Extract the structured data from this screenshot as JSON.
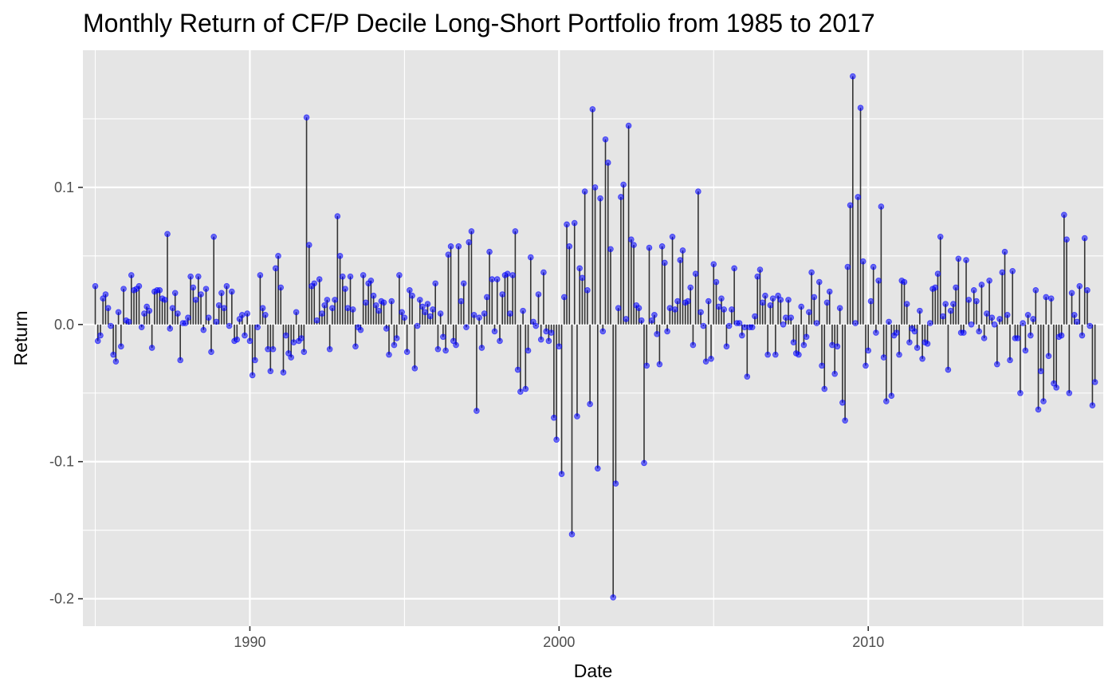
{
  "chart_data": {
    "type": "scatter",
    "subtype": "lollipop",
    "title": "Monthly Return of CF/P Decile Long-Short Portfolio from 1985 to 2017",
    "xlabel": "Date",
    "ylabel": "Return",
    "xlim": [
      1984.6,
      2017.6
    ],
    "ylim": [
      -0.22,
      0.2
    ],
    "x_ticks": [
      1990,
      2000,
      2010
    ],
    "x_tick_labels": [
      "1990",
      "2000",
      "2010"
    ],
    "y_ticks": [
      -0.2,
      -0.1,
      0.0,
      0.1
    ],
    "y_tick_labels": [
      "-0.2",
      "-0.1",
      "0.0",
      "0.1"
    ],
    "grid": true,
    "legend": "none",
    "colors": {
      "panel": "#e5e5e5",
      "grid": "#ffffff",
      "stem": "#333333",
      "point": "#0000ff"
    },
    "start": "1985-01",
    "frequency": "monthly",
    "values": [
      0.028,
      -0.012,
      -0.008,
      0.019,
      0.022,
      0.012,
      -0.001,
      -0.022,
      -0.027,
      0.009,
      -0.016,
      0.026,
      0.003,
      0.002,
      0.036,
      0.025,
      0.026,
      0.028,
      -0.002,
      0.008,
      0.013,
      0.01,
      -0.017,
      0.024,
      0.025,
      0.025,
      0.019,
      0.018,
      0.066,
      -0.003,
      0.012,
      0.023,
      0.008,
      -0.026,
      0.001,
      0.001,
      0.005,
      0.035,
      0.027,
      0.018,
      0.035,
      0.022,
      -0.004,
      0.026,
      0.005,
      -0.02,
      0.064,
      0.002,
      0.014,
      0.023,
      0.012,
      0.028,
      -0.001,
      0.024,
      -0.012,
      -0.011,
      0.004,
      0.007,
      -0.008,
      0.008,
      -0.012,
      -0.037,
      -0.026,
      -0.002,
      0.036,
      0.012,
      0.007,
      -0.018,
      -0.034,
      -0.018,
      0.041,
      0.05,
      0.027,
      -0.035,
      -0.008,
      -0.021,
      -0.024,
      -0.013,
      0.009,
      -0.012,
      -0.01,
      -0.02,
      0.151,
      0.058,
      0.028,
      0.03,
      0.003,
      0.033,
      0.008,
      0.014,
      0.018,
      -0.018,
      0.012,
      0.018,
      0.079,
      0.05,
      0.035,
      0.026,
      0.012,
      0.035,
      0.011,
      -0.016,
      -0.002,
      -0.004,
      0.036,
      0.016,
      0.03,
      0.032,
      0.021,
      0.014,
      0.01,
      0.017,
      0.016,
      -0.003,
      -0.022,
      0.017,
      -0.015,
      -0.01,
      0.036,
      0.009,
      0.005,
      -0.02,
      0.025,
      0.021,
      -0.032,
      -0.001,
      0.018,
      0.013,
      0.009,
      0.015,
      0.006,
      0.011,
      0.03,
      -0.018,
      0.008,
      -0.009,
      -0.019,
      0.051,
      0.057,
      -0.012,
      -0.015,
      0.057,
      0.017,
      0.03,
      -0.002,
      0.06,
      0.068,
      0.007,
      -0.063,
      0.005,
      -0.017,
      0.008,
      0.02,
      0.053,
      0.033,
      -0.005,
      0.033,
      -0.012,
      0.022,
      0.036,
      0.037,
      0.008,
      0.036,
      0.068,
      -0.033,
      -0.049,
      0.01,
      -0.047,
      -0.019,
      0.049,
      0.002,
      -0.001,
      0.022,
      -0.011,
      0.038,
      -0.005,
      -0.012,
      -0.006,
      -0.068,
      -0.084,
      -0.016,
      -0.109,
      0.02,
      0.073,
      0.057,
      -0.153,
      0.074,
      -0.067,
      0.041,
      0.034,
      0.097,
      0.025,
      -0.058,
      0.157,
      0.1,
      -0.105,
      0.092,
      -0.005,
      0.135,
      0.118,
      0.055,
      -0.199,
      -0.116,
      0.012,
      0.093,
      0.102,
      0.004,
      0.145,
      0.062,
      0.058,
      0.014,
      0.012,
      0.003,
      -0.101,
      -0.03,
      0.056,
      0.003,
      0.007,
      -0.007,
      -0.029,
      0.057,
      0.045,
      -0.005,
      0.012,
      0.064,
      0.011,
      0.017,
      0.047,
      0.054,
      0.016,
      0.017,
      0.027,
      -0.015,
      0.037,
      0.097,
      0.009,
      -0.001,
      -0.027,
      0.017,
      -0.025,
      0.044,
      0.031,
      0.013,
      0.019,
      0.011,
      -0.016,
      -0.001,
      0.011,
      0.041,
      0.001,
      0.001,
      -0.008,
      -0.002,
      -0.038,
      -0.002,
      -0.002,
      0.006,
      0.035,
      0.04,
      0.016,
      0.021,
      -0.022,
      0.014,
      0.019,
      -0.022,
      0.021,
      0.018,
      0.0,
      0.005,
      0.018,
      0.005,
      -0.013,
      -0.021,
      -0.022,
      0.013,
      -0.015,
      -0.009,
      0.009,
      0.038,
      0.02,
      0.001,
      0.031,
      -0.03,
      -0.047,
      0.016,
      0.024,
      -0.015,
      -0.036,
      -0.016,
      0.012,
      -0.057,
      -0.07,
      0.042,
      0.087,
      0.181,
      0.001,
      0.093,
      0.158,
      0.046,
      -0.03,
      -0.019,
      0.017,
      0.042,
      -0.006,
      0.032,
      0.086,
      -0.024,
      -0.056,
      0.002,
      -0.052,
      -0.008,
      -0.006,
      -0.022,
      0.032,
      0.031,
      0.015,
      -0.013,
      -0.003,
      -0.005,
      -0.017,
      0.01,
      -0.025,
      -0.013,
      -0.014,
      0.001,
      0.026,
      0.027,
      0.037,
      0.064,
      0.006,
      0.015,
      -0.033,
      0.01,
      0.015,
      0.027,
      0.048,
      -0.006,
      -0.006,
      0.047,
      0.018,
      0.0,
      0.025,
      0.017,
      -0.005,
      0.029,
      -0.01,
      0.008,
      0.032,
      0.005,
      0.0,
      -0.029,
      0.004,
      0.038,
      0.053,
      0.007,
      -0.026,
      0.039,
      -0.01,
      -0.01,
      -0.05,
      0.001,
      -0.019,
      0.007,
      -0.008,
      0.004,
      0.025,
      -0.062,
      -0.034,
      -0.056,
      0.02,
      -0.023,
      0.019,
      -0.043,
      -0.046,
      -0.009,
      -0.008,
      0.08,
      0.062,
      -0.05,
      0.023,
      0.007,
      0.002,
      0.028,
      -0.008,
      0.063,
      0.025,
      -0.001,
      -0.059,
      -0.042
    ]
  }
}
